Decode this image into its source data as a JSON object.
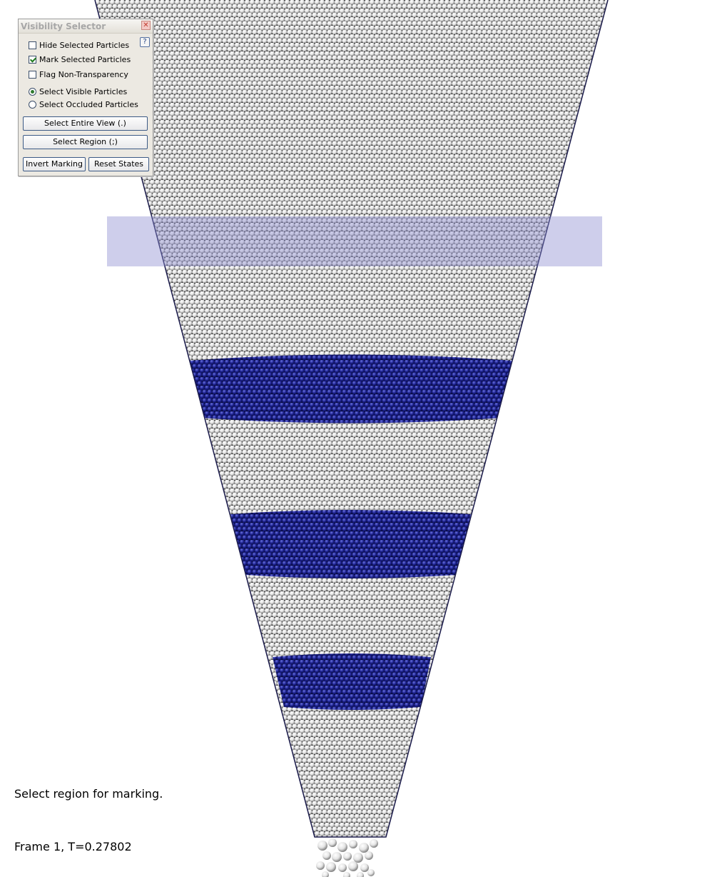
{
  "window": {
    "title": "Visibility Selector",
    "close_icon": "close-icon",
    "help_label": "?"
  },
  "options": {
    "hide_selected": {
      "label": "Hide Selected Particles",
      "checked": false
    },
    "mark_selected": {
      "label": "Mark Selected Particles",
      "checked": true
    },
    "flag_non_transparency": {
      "label": "Flag Non-Transparency",
      "checked": false
    },
    "select_visible": {
      "label": "Select Visible Particles",
      "selected": true
    },
    "select_occluded": {
      "label": "Select Occluded Particles",
      "selected": false
    }
  },
  "buttons": {
    "select_entire_view": "Select Entire View (.)",
    "select_region": "Select Region (;)",
    "invert_marking": "Invert Marking",
    "reset_states": "Reset States"
  },
  "status": {
    "message": "Select region for marking.",
    "frame": "Frame 1, T=0.27802"
  },
  "colors": {
    "background": "#ffffff",
    "particle_unmarked": "#e6e6e6",
    "particle_marked": "#1b1f8a",
    "selection_overlay": "#9a9ad8"
  }
}
